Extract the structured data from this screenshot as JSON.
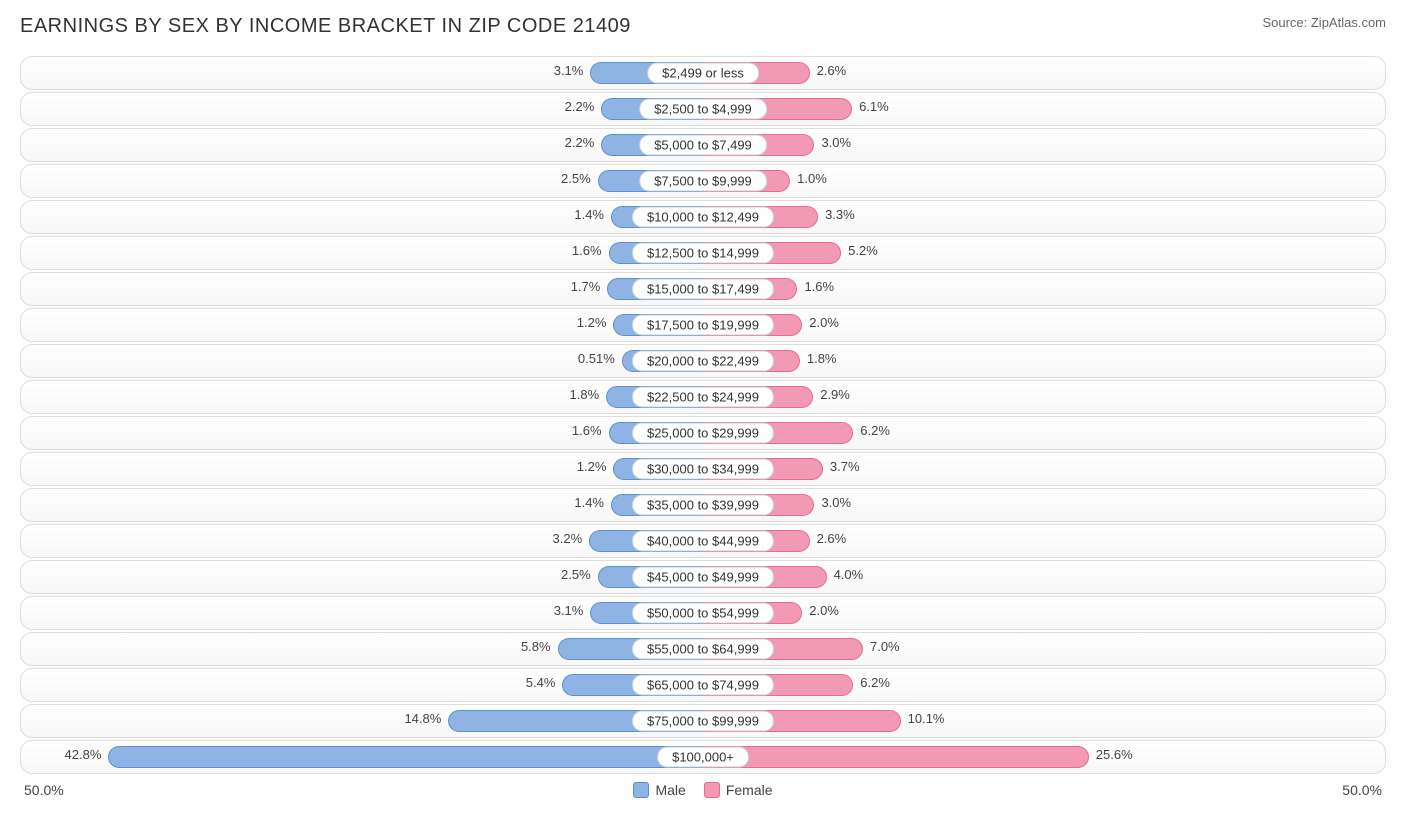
{
  "title": "EARNINGS BY SEX BY INCOME BRACKET IN ZIP CODE 21409",
  "source": "Source: ZipAtlas.com",
  "axis": {
    "left": "50.0%",
    "right": "50.0%",
    "max_pct": 50.0
  },
  "legend": {
    "male": "Male",
    "female": "Female"
  },
  "colors": {
    "male_fill": "#8fb4e3",
    "male_border": "#5a8fd4",
    "female_fill": "#f199b5",
    "female_border": "#e76a92",
    "row_border": "#dddddd",
    "text": "#444444",
    "bg": "#ffffff"
  },
  "rows": [
    {
      "label": "$2,499 or less",
      "male": 3.1,
      "male_txt": "3.1%",
      "female": 2.6,
      "female_txt": "2.6%"
    },
    {
      "label": "$2,500 to $4,999",
      "male": 2.2,
      "male_txt": "2.2%",
      "female": 6.1,
      "female_txt": "6.1%"
    },
    {
      "label": "$5,000 to $7,499",
      "male": 2.2,
      "male_txt": "2.2%",
      "female": 3.0,
      "female_txt": "3.0%"
    },
    {
      "label": "$7,500 to $9,999",
      "male": 2.5,
      "male_txt": "2.5%",
      "female": 1.0,
      "female_txt": "1.0%"
    },
    {
      "label": "$10,000 to $12,499",
      "male": 1.4,
      "male_txt": "1.4%",
      "female": 3.3,
      "female_txt": "3.3%"
    },
    {
      "label": "$12,500 to $14,999",
      "male": 1.6,
      "male_txt": "1.6%",
      "female": 5.2,
      "female_txt": "5.2%"
    },
    {
      "label": "$15,000 to $17,499",
      "male": 1.7,
      "male_txt": "1.7%",
      "female": 1.6,
      "female_txt": "1.6%"
    },
    {
      "label": "$17,500 to $19,999",
      "male": 1.2,
      "male_txt": "1.2%",
      "female": 2.0,
      "female_txt": "2.0%"
    },
    {
      "label": "$20,000 to $22,499",
      "male": 0.51,
      "male_txt": "0.51%",
      "female": 1.8,
      "female_txt": "1.8%"
    },
    {
      "label": "$22,500 to $24,999",
      "male": 1.8,
      "male_txt": "1.8%",
      "female": 2.9,
      "female_txt": "2.9%"
    },
    {
      "label": "$25,000 to $29,999",
      "male": 1.6,
      "male_txt": "1.6%",
      "female": 6.2,
      "female_txt": "6.2%"
    },
    {
      "label": "$30,000 to $34,999",
      "male": 1.2,
      "male_txt": "1.2%",
      "female": 3.7,
      "female_txt": "3.7%"
    },
    {
      "label": "$35,000 to $39,999",
      "male": 1.4,
      "male_txt": "1.4%",
      "female": 3.0,
      "female_txt": "3.0%"
    },
    {
      "label": "$40,000 to $44,999",
      "male": 3.2,
      "male_txt": "3.2%",
      "female": 2.6,
      "female_txt": "2.6%"
    },
    {
      "label": "$45,000 to $49,999",
      "male": 2.5,
      "male_txt": "2.5%",
      "female": 4.0,
      "female_txt": "4.0%"
    },
    {
      "label": "$50,000 to $54,999",
      "male": 3.1,
      "male_txt": "3.1%",
      "female": 2.0,
      "female_txt": "2.0%"
    },
    {
      "label": "$55,000 to $64,999",
      "male": 5.8,
      "male_txt": "5.8%",
      "female": 7.0,
      "female_txt": "7.0%"
    },
    {
      "label": "$65,000 to $74,999",
      "male": 5.4,
      "male_txt": "5.4%",
      "female": 6.2,
      "female_txt": "6.2%"
    },
    {
      "label": "$75,000 to $99,999",
      "male": 14.8,
      "male_txt": "14.8%",
      "female": 10.1,
      "female_txt": "10.1%"
    },
    {
      "label": "$100,000+",
      "male": 42.8,
      "male_txt": "42.8%",
      "female": 25.6,
      "female_txt": "25.6%"
    }
  ]
}
